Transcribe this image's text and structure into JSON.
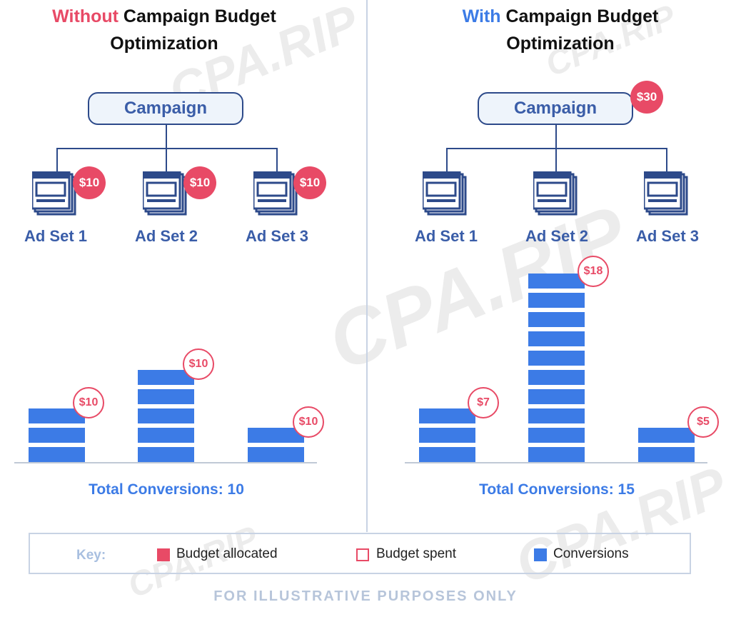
{
  "left": {
    "title_word": "Without",
    "title_rest_1": " Campaign Budget",
    "title_rest_2": "Optimization",
    "campaign_label": "Campaign",
    "adsets": [
      {
        "label": "Ad Set 1",
        "budget": "$10"
      },
      {
        "label": "Ad Set 2",
        "budget": "$10"
      },
      {
        "label": "Ad Set 3",
        "budget": "$10"
      }
    ],
    "bars": [
      {
        "conversions": 3,
        "spent": "$10"
      },
      {
        "conversions": 5,
        "spent": "$10"
      },
      {
        "conversions": 2,
        "spent": "$10"
      }
    ],
    "total": "Total Conversions: 10"
  },
  "right": {
    "title_word": "With",
    "title_rest_1": " Campaign Budget",
    "title_rest_2": "Optimization",
    "campaign_label": "Campaign",
    "campaign_budget": "$30",
    "adsets": [
      {
        "label": "Ad Set 1"
      },
      {
        "label": "Ad Set 2"
      },
      {
        "label": "Ad Set 3"
      }
    ],
    "bars": [
      {
        "conversions": 3,
        "spent": "$7"
      },
      {
        "conversions": 10,
        "spent": "$18"
      },
      {
        "conversions": 2,
        "spent": "$5"
      }
    ],
    "total": "Total Conversions: 15"
  },
  "key": {
    "title": "Key:",
    "budget_allocated": "Budget allocated",
    "budget_spent": "Budget spent",
    "conversions": "Conversions"
  },
  "footer": "FOR ILLUSTRATIVE PURPOSES ONLY",
  "watermark": "CPA.RIP",
  "colors": {
    "allocated": "#e84a66",
    "conversions": "#3c7be6",
    "lines": "#2d4a8a",
    "label": "#3a5da8"
  }
}
